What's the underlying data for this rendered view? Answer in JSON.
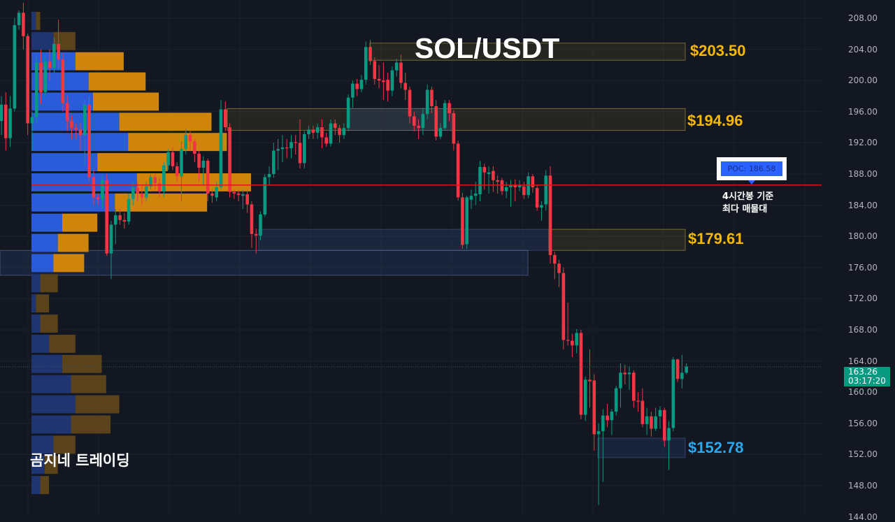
{
  "header": {
    "title": "SOL/USDT",
    "brand": "곰지네 트레이딩"
  },
  "poc": {
    "label": "POC: 186.58",
    "price": 186.58,
    "note_line1": "4시간봉 기준",
    "note_line2": "최다 매물대"
  },
  "current": {
    "price": "163.26",
    "countdown": "03:17:20",
    "value": 163.26
  },
  "zones": [
    {
      "label": "$203.50",
      "high": 204.8,
      "low": 202.6,
      "color": "#f5b800"
    },
    {
      "label": "$194.96",
      "high": 196.4,
      "low": 193.6,
      "color": "#f5b800"
    },
    {
      "label": "$179.61",
      "high": 180.9,
      "low": 178.2,
      "color": "#f5b800"
    },
    {
      "label": "$152.78",
      "high": 154.1,
      "low": 151.6,
      "color": "#29a9f0"
    }
  ],
  "colors": {
    "background": "#131722",
    "up": "#089981",
    "down": "#f23645",
    "poc_line": "#e5121b",
    "buy_volume": "#2a5bd9",
    "sell_volume": "#cf850c",
    "current_price": "#089981"
  },
  "chart_data": {
    "type": "candlestick",
    "title": "SOL/USDT",
    "timeframe": "4h",
    "ylim": [
      144,
      210
    ],
    "yticks": [
      "208.00",
      "204.00",
      "200.00",
      "196.00",
      "192.00",
      "188.00",
      "184.00",
      "180.00",
      "176.00",
      "172.00",
      "168.00",
      "164.00",
      "160.00",
      "156.00",
      "152.00",
      "148.00",
      "144.00"
    ],
    "grid": true,
    "candles_ohlc": [
      [
        194.8,
        198,
        193,
        196.9
      ],
      [
        196.9,
        198.5,
        191,
        192.6
      ],
      [
        192.6,
        198,
        191.5,
        196.4
      ],
      [
        196.4,
        208,
        196,
        207.1
      ],
      [
        207.1,
        209,
        206.5,
        208.7
      ],
      [
        208.7,
        210,
        204,
        205.7
      ],
      [
        205.7,
        206,
        193,
        194.5
      ],
      [
        194.5,
        196,
        191,
        195.3
      ],
      [
        195.3,
        203,
        194.5,
        202.3
      ],
      [
        202.3,
        204,
        197,
        198.5
      ],
      [
        198.5,
        203,
        198,
        202.4
      ],
      [
        202.4,
        204,
        200,
        201.6
      ],
      [
        201.6,
        205.5,
        201,
        204.7
      ],
      [
        204.7,
        207.8,
        201.5,
        202.7
      ],
      [
        202.7,
        203.5,
        196,
        197.1
      ],
      [
        197.1,
        198,
        193.5,
        194.8
      ],
      [
        194.8,
        195.5,
        192.5,
        193.9
      ],
      [
        193.9,
        194.5,
        192.5,
        193.7
      ],
      [
        193.7,
        194.5,
        191,
        193.0
      ],
      [
        193.0,
        197.5,
        189,
        196.9
      ],
      [
        196.9,
        198,
        187,
        187.6
      ],
      [
        187.6,
        188.5,
        184,
        185.0
      ],
      [
        185.0,
        185.5,
        184,
        184.8
      ],
      [
        184.8,
        187.8,
        183.5,
        187.2
      ],
      [
        187.2,
        188,
        177.5,
        177.8
      ],
      [
        177.8,
        182,
        174.5,
        181.5
      ],
      [
        181.5,
        183.5,
        179,
        182.7
      ],
      [
        182.7,
        183.5,
        181.5,
        182.1
      ],
      [
        182.1,
        183,
        181,
        181.9
      ],
      [
        181.9,
        185.5,
        181.5,
        184.8
      ],
      [
        184.8,
        187,
        184,
        186.3
      ],
      [
        186.3,
        187,
        184.5,
        185.5
      ],
      [
        185.5,
        186.5,
        184,
        185.0
      ],
      [
        185.0,
        187,
        184.5,
        186.4
      ],
      [
        186.4,
        188,
        186,
        187.6
      ],
      [
        187.6,
        188,
        186,
        186.8
      ],
      [
        186.8,
        187.5,
        185,
        185.8
      ],
      [
        185.8,
        189.5,
        185,
        189.1
      ],
      [
        189.1,
        191.2,
        188.5,
        190.8
      ],
      [
        190.8,
        191.5,
        188.5,
        189.0
      ],
      [
        189.0,
        189.5,
        187,
        187.7
      ],
      [
        187.7,
        192.2,
        184.5,
        191.2
      ],
      [
        191.2,
        193.8,
        190.5,
        193.0
      ],
      [
        193.0,
        193.5,
        191,
        192.2
      ],
      [
        192.2,
        192.5,
        189.5,
        190.6
      ],
      [
        190.6,
        191,
        187,
        188.8
      ],
      [
        188.8,
        190.3,
        186.5,
        189.7
      ],
      [
        189.7,
        190,
        184.5,
        185.5
      ],
      [
        185.5,
        186,
        184.3,
        185.2
      ],
      [
        185.0,
        187,
        184.5,
        186.3
      ],
      [
        186.3,
        197.5,
        186,
        196.3
      ],
      [
        196.3,
        197.3,
        193.5,
        194.0
      ],
      [
        194.0,
        194.5,
        185,
        185.7
      ],
      [
        185.7,
        186,
        184.8,
        185.5
      ],
      [
        185.5,
        186,
        184.5,
        185.3
      ],
      [
        185.2,
        186,
        183.5,
        185.4
      ],
      [
        185.4,
        186,
        183,
        184.1
      ],
      [
        184.1,
        184.5,
        178.5,
        180.3
      ],
      [
        180.3,
        181,
        177.8,
        180.1
      ],
      [
        180.1,
        183.2,
        179.5,
        182.8
      ],
      [
        182.8,
        188,
        182.5,
        187.6
      ],
      [
        187.6,
        189,
        186.5,
        188.0
      ],
      [
        188.0,
        192,
        187.5,
        191.0
      ],
      [
        191.0,
        192.5,
        188.5,
        191.2
      ],
      [
        191.2,
        193,
        189.5,
        191.4
      ],
      [
        191.4,
        192.5,
        190,
        191.3
      ],
      [
        191.3,
        193,
        190,
        192.1
      ],
      [
        192.1,
        193,
        190.5,
        192.0
      ],
      [
        192.0,
        195,
        188.7,
        189.4
      ],
      [
        189.4,
        193.5,
        188.7,
        193.1
      ],
      [
        193.1,
        194.2,
        192.5,
        193.7
      ],
      [
        193.7,
        194.2,
        192.5,
        193.3
      ],
      [
        193.3,
        194.5,
        192.5,
        194.0
      ],
      [
        194.0,
        195,
        191.3,
        192.7
      ],
      [
        192.7,
        193.3,
        191.5,
        191.9
      ],
      [
        191.9,
        195,
        191.5,
        194.5
      ],
      [
        194.5,
        195,
        193,
        193.9
      ],
      [
        193.9,
        194.3,
        192,
        193.0
      ],
      [
        193.0,
        194.5,
        192.5,
        193.9
      ],
      [
        193.9,
        198.2,
        193.5,
        197.8
      ],
      [
        197.8,
        200,
        196.5,
        199.6
      ],
      [
        199.6,
        200.2,
        198,
        198.9
      ],
      [
        198.9,
        200.7,
        198.5,
        200.1
      ],
      [
        200.1,
        205,
        199.5,
        204.3
      ],
      [
        204.3,
        205.2,
        202,
        202.5
      ],
      [
        202.5,
        203,
        199.5,
        200.2
      ],
      [
        200.2,
        202,
        199,
        200.0
      ],
      [
        200.0,
        202.3,
        197.5,
        199.8
      ],
      [
        200.1,
        201,
        197.3,
        198.7
      ],
      [
        198.7,
        201.8,
        198,
        201.3
      ],
      [
        201.3,
        202.8,
        200.5,
        202.3
      ],
      [
        202.3,
        203.3,
        199,
        199.7
      ],
      [
        199.7,
        201,
        197.5,
        198.8
      ],
      [
        198.8,
        199.2,
        194.5,
        195.4
      ],
      [
        195.4,
        196,
        193.5,
        194.2
      ],
      [
        194.2,
        195,
        192.5,
        193.9
      ],
      [
        193.9,
        196.5,
        193,
        195.7
      ],
      [
        195.7,
        199.5,
        195,
        198.8
      ],
      [
        198.8,
        199.2,
        195.8,
        196.7
      ],
      [
        196.7,
        197.5,
        192.3,
        192.8
      ],
      [
        192.8,
        194.5,
        192.5,
        193.9
      ],
      [
        193.9,
        197.5,
        193.7,
        197.1
      ],
      [
        197.1,
        197.5,
        194.8,
        195.8
      ],
      [
        195.8,
        196.2,
        191,
        191.9
      ],
      [
        191.9,
        192.3,
        184.6,
        185.0
      ],
      [
        185.0,
        185.6,
        178.4,
        178.9
      ],
      [
        179.0,
        185.2,
        178.4,
        185.0
      ],
      [
        184.7,
        186,
        183.5,
        185.2
      ],
      [
        185.2,
        187,
        184,
        185.5
      ],
      [
        185.4,
        189.7,
        184.5,
        188.9
      ],
      [
        188.9,
        189.3,
        186,
        188.2
      ],
      [
        188.0,
        189,
        185.5,
        188.2
      ],
      [
        188.4,
        189,
        185.7,
        187.2
      ],
      [
        187.2,
        187.8,
        185.5,
        187.0
      ],
      [
        187.2,
        187.5,
        185.3,
        185.8
      ],
      [
        185.8,
        187,
        184.9,
        186.3
      ],
      [
        186.3,
        187.2,
        183.8,
        186.6
      ],
      [
        186.6,
        187.3,
        184.5,
        186.3
      ],
      [
        186.3,
        187.2,
        185.8,
        186.6
      ],
      [
        186.4,
        187,
        184.8,
        185.3
      ],
      [
        185.3,
        188.2,
        184.9,
        187.7
      ],
      [
        187.7,
        188,
        185.6,
        186.3
      ],
      [
        186.2,
        186.5,
        183.3,
        183.7
      ],
      [
        183.7,
        184.5,
        182,
        184.0
      ],
      [
        184.1,
        188.5,
        183.3,
        187.8
      ],
      [
        187.8,
        189,
        176.5,
        177.6
      ],
      [
        177.6,
        178,
        174.5,
        176.5
      ],
      [
        176.5,
        177,
        173.5,
        175.3
      ],
      [
        175.3,
        176,
        165.5,
        166.7
      ],
      [
        166.7,
        171.5,
        166,
        166.6
      ],
      [
        166.6,
        167.5,
        164.5,
        166.0
      ],
      [
        166.0,
        168.1,
        165,
        167.6
      ],
      [
        167.6,
        168,
        156.5,
        157.1
      ],
      [
        157.1,
        162,
        156.3,
        161.6
      ],
      [
        161.6,
        165.5,
        158,
        161.4
      ],
      [
        161.5,
        162.3,
        152.5,
        154.6
      ],
      [
        154.6,
        156,
        145.5,
        155.0
      ],
      [
        155.0,
        157.8,
        148.5,
        157.0
      ],
      [
        157.0,
        158.5,
        155.5,
        156.4
      ],
      [
        156.4,
        157.8,
        154.5,
        157.5
      ],
      [
        157.5,
        160.8,
        157,
        160.5
      ],
      [
        160.5,
        163.7,
        158,
        162.5
      ],
      [
        162.5,
        163.5,
        161,
        162.3
      ],
      [
        162.3,
        163.3,
        160.3,
        162.5
      ],
      [
        162.5,
        162.8,
        158,
        158.9
      ],
      [
        158.9,
        160,
        157.5,
        158.8
      ],
      [
        158.9,
        160.5,
        155.5,
        155.9
      ],
      [
        155.9,
        158,
        154.5,
        156.9
      ],
      [
        156.9,
        157.5,
        154.3,
        155.3
      ],
      [
        155.3,
        158,
        155,
        156.9
      ],
      [
        156.9,
        158.2,
        155.3,
        157.7
      ],
      [
        157.7,
        158,
        153,
        153.8
      ],
      [
        153.8,
        156.3,
        150,
        155.4
      ],
      [
        155.4,
        164.5,
        155,
        164.2
      ],
      [
        164.2,
        164.3,
        161.3,
        161.7
      ],
      [
        161.7,
        164.8,
        160.5,
        162.5
      ],
      [
        162.5,
        163.7,
        162.3,
        163.3
      ]
    ],
    "volume_profile": {
      "top_price": 208.9,
      "row_size": 2.59,
      "value_area_high": 203.72,
      "value_area_low": 175.23,
      "rows_buy_sell_pct_of_poc": [
        [
          2,
          2
        ],
        [
          10,
          10
        ],
        [
          20,
          22
        ],
        [
          26,
          26
        ],
        [
          28,
          30
        ],
        [
          40,
          42
        ],
        [
          44,
          45
        ],
        [
          30,
          32
        ],
        [
          48,
          52
        ],
        [
          38,
          42
        ],
        [
          14,
          16
        ],
        [
          12,
          14
        ],
        [
          10,
          14
        ],
        [
          4,
          8
        ],
        [
          2,
          6
        ],
        [
          4,
          8
        ],
        [
          8,
          12
        ],
        [
          14,
          18
        ],
        [
          18,
          16
        ],
        [
          20,
          20
        ],
        [
          18,
          18
        ],
        [
          10,
          10
        ],
        [
          6,
          6
        ],
        [
          4,
          4
        ]
      ]
    }
  }
}
